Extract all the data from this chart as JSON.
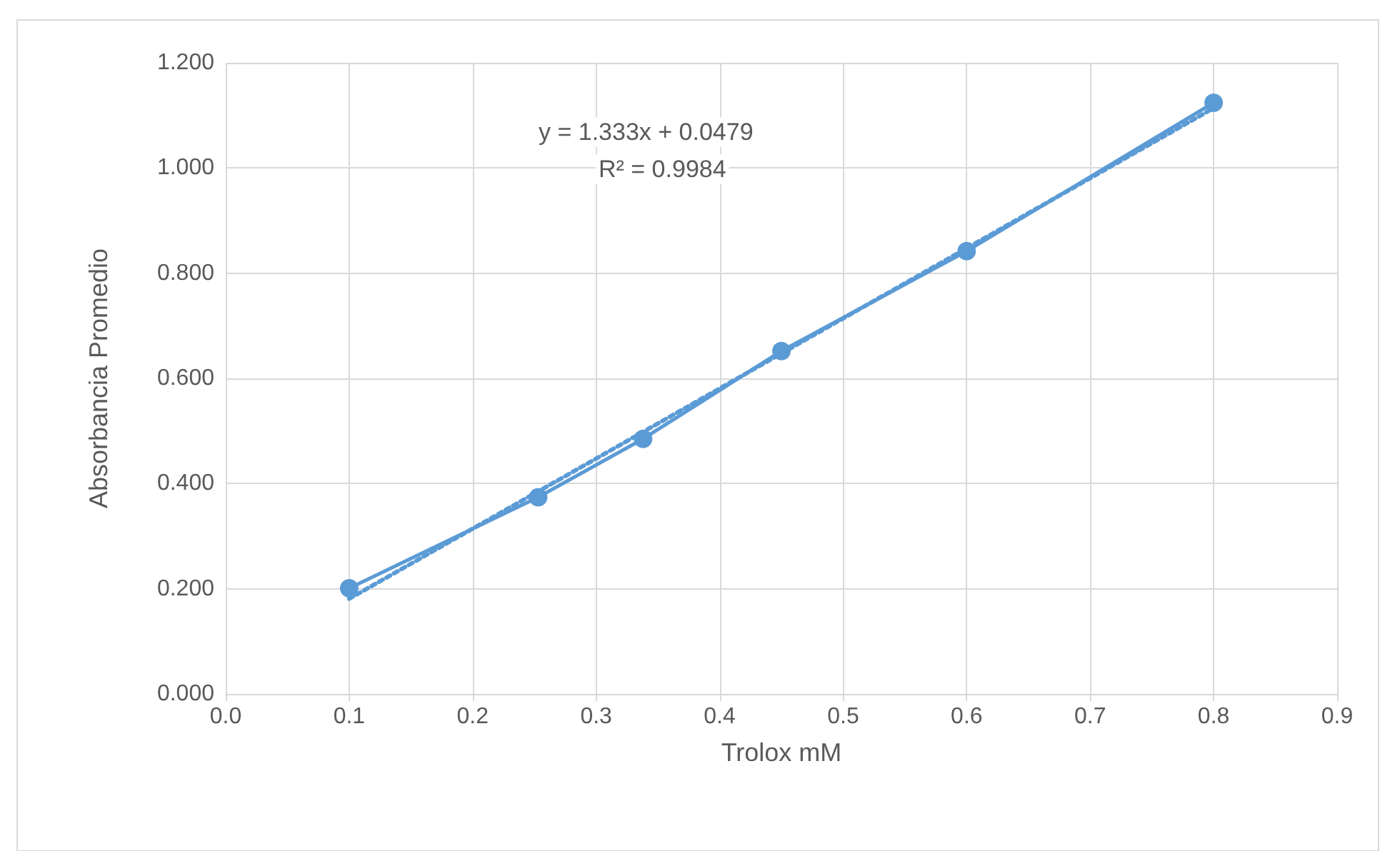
{
  "chart_data": {
    "type": "line",
    "xlabel": "Trolox mM",
    "ylabel": "Absorbancia Promedio",
    "series": [
      {
        "color": "#5b9bd5",
        "x": [
          0.1,
          0.253,
          0.338,
          0.45,
          0.6,
          0.8
        ],
        "values": [
          0.201,
          0.374,
          0.485,
          0.652,
          0.842,
          1.124
        ],
        "marker": "circle",
        "line_style": "solid"
      },
      {
        "color": "#5b9bd5",
        "x": [
          0.1,
          0.8
        ],
        "values": [
          0.181,
          1.114
        ],
        "marker": "none",
        "line_style": "dotted"
      }
    ],
    "xlim": [
      0,
      0.9
    ],
    "xticks": [
      {
        "value": 0,
        "label": "0.0"
      },
      0.1,
      0.2,
      0.3,
      0.4,
      0.5,
      0.6,
      0.7,
      0.8,
      0.9
    ],
    "ylim": [
      0,
      1.2
    ],
    "yticks": [
      {
        "value": 0,
        "label": "0.000"
      },
      {
        "value": 0.2,
        "label": "0.200"
      },
      {
        "value": 0.4,
        "label": "0.400"
      },
      {
        "value": 0.6,
        "label": "0.600"
      },
      {
        "value": 0.8,
        "label": "0.800"
      },
      {
        "value": 1,
        "label": "1.000"
      },
      {
        "value": 1.2,
        "label": "1.200"
      }
    ],
    "grid": true,
    "annotations": [
      "y = 1.333x + 0.0479",
      "R² = 0.9984"
    ]
  }
}
